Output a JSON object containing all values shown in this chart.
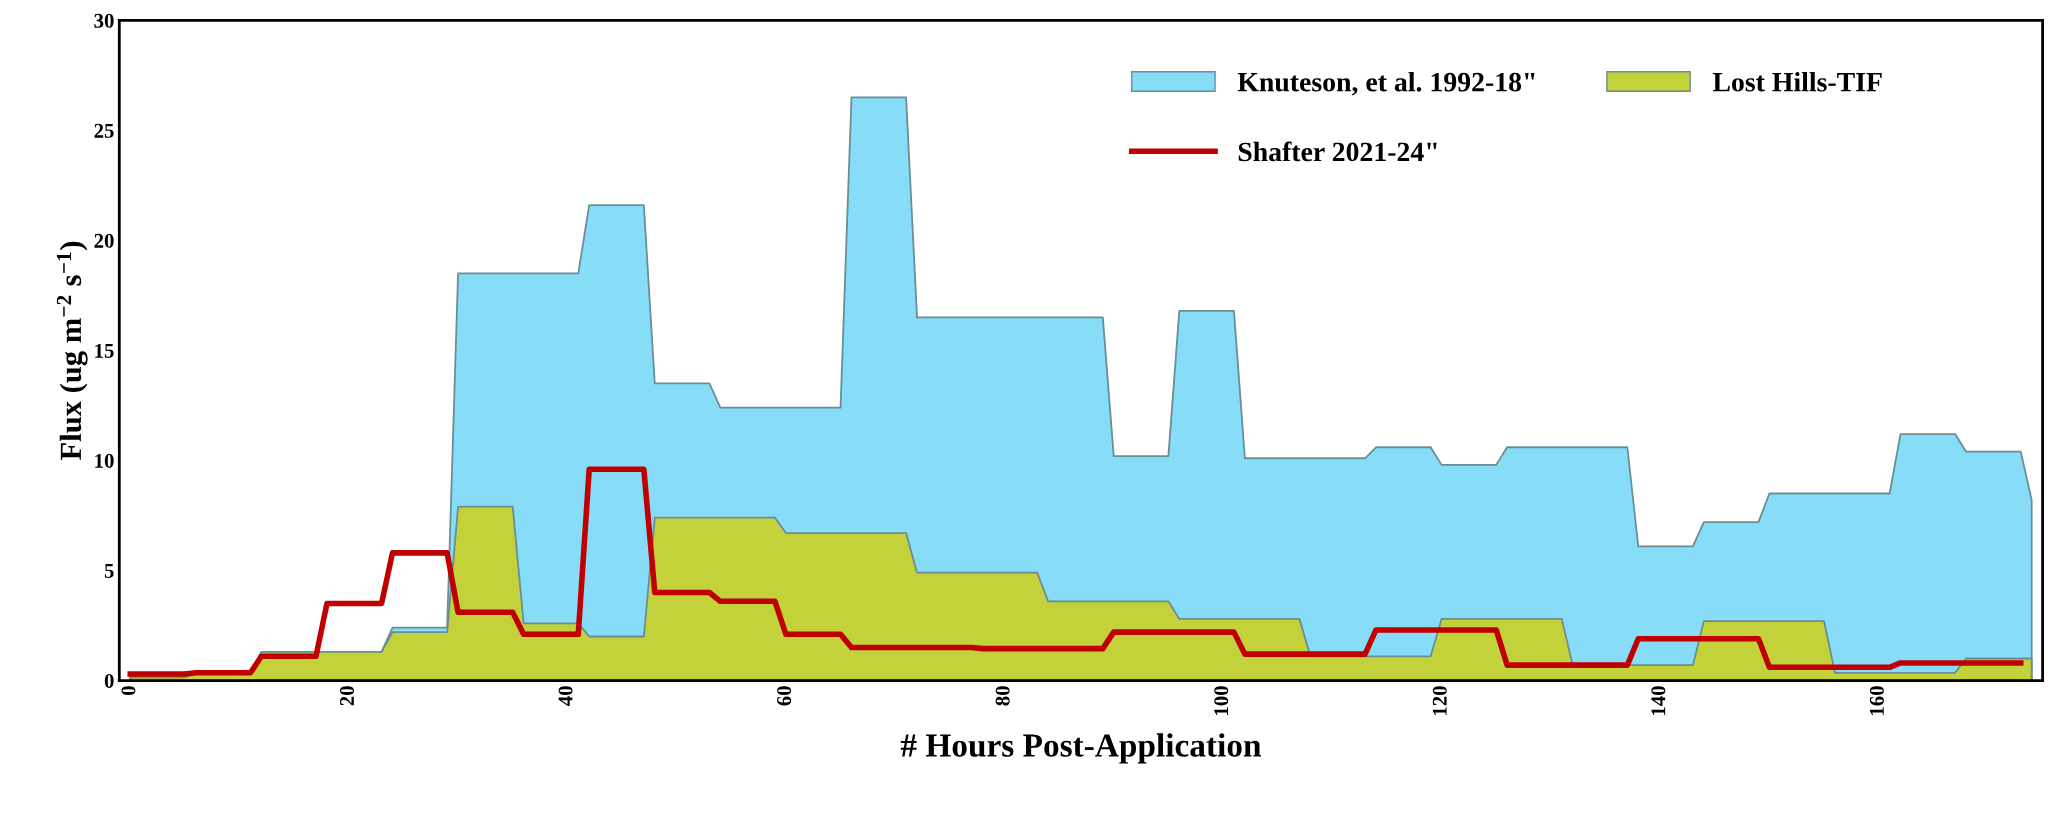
{
  "chart_data": {
    "type": "area",
    "xlabel": "# Hours Post-Application",
    "ylabel": "Flux (ug m$^{−2}$ s$^{−1}$)",
    "xlim": [
      -1,
      175
    ],
    "xticks": [
      0,
      20,
      40,
      60,
      80,
      100,
      120,
      140,
      160
    ],
    "ylim": [
      0,
      30
    ],
    "yticks": [
      0,
      5,
      10,
      15,
      20,
      25,
      30
    ],
    "grid": false,
    "legend": "top right",
    "series": [
      {
        "name": "Knuteson, et al. 1992-18\"",
        "color": "#87ddf7",
        "x": [
          0,
          5,
          6,
          11,
          12,
          17,
          18,
          23,
          24,
          29,
          30,
          35,
          36,
          41,
          42,
          47,
          48,
          53,
          54,
          59,
          60,
          65,
          66,
          71,
          72,
          77,
          78,
          83,
          84,
          89,
          90,
          95,
          96,
          101,
          102,
          107,
          108,
          113,
          114,
          119,
          120,
          125,
          126,
          131,
          132,
          137,
          138,
          143,
          144,
          149,
          150,
          155,
          156,
          161,
          162,
          167,
          168,
          173,
          174
        ],
        "values": [
          0.2,
          0.2,
          0.3,
          0.3,
          1.3,
          1.3,
          1.3,
          1.3,
          2.4,
          2.4,
          18.5,
          18.5,
          18.5,
          18.5,
          21.6,
          21.6,
          13.5,
          13.5,
          12.4,
          12.4,
          12.4,
          12.4,
          26.5,
          26.5,
          16.5,
          16.5,
          16.5,
          16.5,
          16.5,
          16.5,
          10.2,
          10.2,
          16.8,
          16.8,
          10.1,
          10.1,
          10.1,
          10.1,
          10.6,
          10.6,
          9.8,
          9.8,
          10.6,
          10.6,
          10.6,
          10.6,
          6.1,
          6.1,
          7.2,
          7.2,
          8.5,
          8.5,
          8.5,
          8.5,
          11.2,
          11.2,
          10.4,
          10.4,
          8.2
        ]
      },
      {
        "name": "Lost Hills-TIF",
        "color": "#c3d13b",
        "x": [
          0,
          5,
          6,
          11,
          12,
          17,
          18,
          23,
          24,
          29,
          30,
          35,
          36,
          41,
          42,
          47,
          48,
          53,
          54,
          59,
          60,
          65,
          66,
          71,
          72,
          77,
          78,
          83,
          84,
          89,
          90,
          95,
          96,
          101,
          102,
          107,
          108,
          113,
          114,
          119,
          120,
          125,
          126,
          131,
          132,
          137,
          138,
          143,
          144,
          149,
          150,
          155,
          156,
          161,
          162,
          167,
          168,
          173,
          174
        ],
        "values": [
          0.15,
          0.15,
          0.3,
          0.3,
          1.3,
          1.3,
          1.3,
          1.3,
          2.2,
          2.2,
          7.9,
          7.9,
          2.6,
          2.6,
          2.0,
          2.0,
          7.4,
          7.4,
          7.4,
          7.4,
          6.7,
          6.7,
          6.7,
          6.7,
          4.9,
          4.9,
          4.9,
          4.9,
          3.6,
          3.6,
          3.6,
          3.6,
          2.8,
          2.8,
          2.8,
          2.8,
          1.1,
          1.1,
          1.1,
          1.1,
          2.8,
          2.8,
          2.8,
          2.8,
          0.7,
          0.7,
          0.7,
          0.7,
          2.7,
          2.7,
          2.7,
          2.7,
          0.35,
          0.35,
          0.35,
          0.35,
          1.0,
          1.0,
          1.0
        ]
      },
      {
        "name": "Shafter 2021-24\"",
        "type": "line",
        "color": "#c00000",
        "line_style": "solid",
        "x": [
          0,
          5,
          6,
          11,
          12,
          17,
          18,
          23,
          24,
          29,
          30,
          35,
          36,
          41,
          42,
          47,
          48,
          53,
          54,
          59,
          60,
          65,
          66,
          71,
          72,
          77,
          78,
          83,
          84,
          89,
          90,
          95,
          96,
          101,
          102,
          107,
          108,
          113,
          114,
          119,
          120,
          125,
          126,
          131,
          132,
          137,
          138,
          143,
          144,
          149,
          150,
          155,
          156,
          161,
          162,
          167,
          168,
          173
        ],
        "values": [
          0.3,
          0.3,
          0.35,
          0.35,
          1.1,
          1.1,
          3.5,
          3.5,
          5.8,
          5.8,
          3.1,
          3.1,
          2.1,
          2.1,
          9.6,
          9.6,
          4.0,
          4.0,
          3.6,
          3.6,
          2.1,
          2.1,
          1.5,
          1.5,
          1.5,
          1.5,
          1.45,
          1.45,
          1.45,
          1.45,
          2.2,
          2.2,
          2.2,
          2.2,
          1.2,
          1.2,
          1.2,
          1.2,
          2.3,
          2.3,
          2.3,
          2.3,
          0.7,
          0.7,
          0.7,
          0.7,
          1.9,
          1.9,
          1.9,
          1.9,
          0.6,
          0.6,
          0.6,
          0.6,
          0.8,
          0.8,
          0.8,
          0.8
        ]
      }
    ]
  }
}
